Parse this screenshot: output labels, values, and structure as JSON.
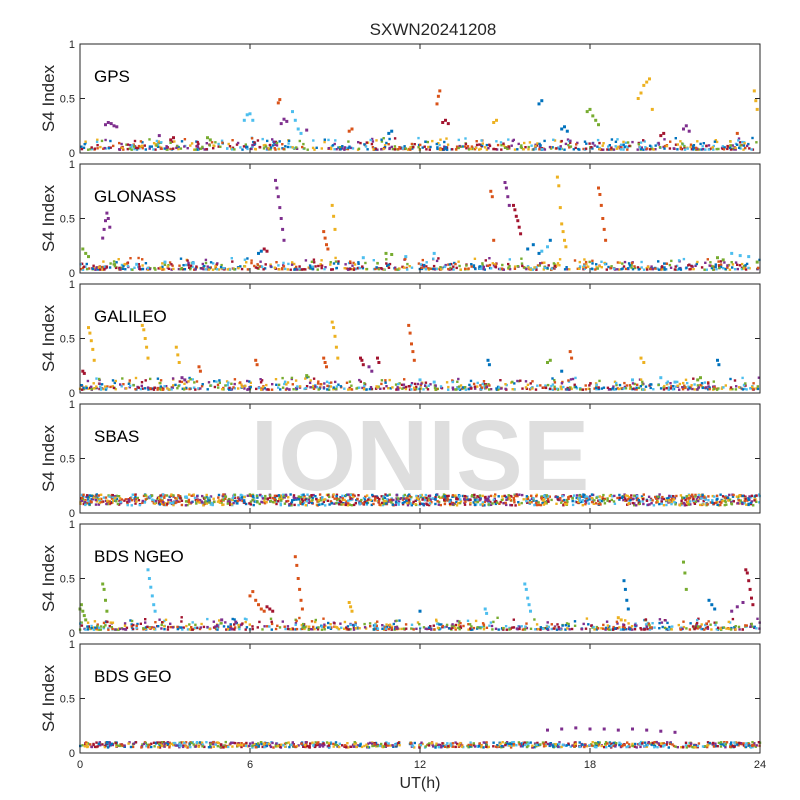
{
  "chart_data": {
    "type": "scatter",
    "title": "SXWN20241208",
    "xlabel": "UT(h)",
    "ylabel": "S4 Index",
    "xlim": [
      0,
      24
    ],
    "ylim": [
      0,
      1
    ],
    "xticks": [
      0,
      6,
      12,
      18,
      24
    ],
    "xtick_labels": [
      "0",
      "6",
      "12",
      "18",
      "24"
    ],
    "yticks": [
      0,
      0.5,
      1
    ],
    "ytick_labels": [
      "0",
      "0.5",
      "1"
    ],
    "watermark": "IONISE",
    "grid": false,
    "palette": [
      "#0072BD",
      "#D95319",
      "#EDB120",
      "#7E2F8E",
      "#77AC30",
      "#4DBEEE",
      "#A2142F"
    ],
    "panels": [
      {
        "label": "GPS",
        "series": [
          {
            "color_index": 3,
            "x": [
              0.9,
              1.0,
              1.1,
              1.2,
              1.3,
              2.8,
              7.1,
              7.2,
              7.3,
              8.0,
              21.3,
              21.4,
              21.5
            ],
            "y": [
              0.26,
              0.28,
              0.27,
              0.25,
              0.24,
              0.16,
              0.27,
              0.31,
              0.29,
              0.21,
              0.22,
              0.25,
              0.2
            ]
          },
          {
            "color_index": 5,
            "x": [
              5.8,
              5.9,
              6.0,
              6.1,
              7.5,
              7.6,
              7.7,
              7.8
            ],
            "y": [
              0.3,
              0.35,
              0.36,
              0.3,
              0.38,
              0.3,
              0.22,
              0.18
            ]
          },
          {
            "color_index": 1,
            "x": [
              7.0,
              7.05,
              12.6,
              12.65,
              12.7,
              9.5,
              9.6,
              23.2
            ],
            "y": [
              0.46,
              0.49,
              0.45,
              0.52,
              0.57,
              0.2,
              0.22,
              0.18
            ]
          },
          {
            "color_index": 2,
            "x": [
              19.7,
              19.8,
              19.9,
              20.0,
              20.1,
              20.2,
              23.8,
              23.85,
              23.9,
              14.6,
              14.7
            ],
            "y": [
              0.5,
              0.55,
              0.62,
              0.65,
              0.68,
              0.4,
              0.57,
              0.48,
              0.4,
              0.28,
              0.3
            ]
          },
          {
            "color_index": 0,
            "x": [
              16.2,
              16.3,
              17.0,
              17.1,
              17.2,
              10.9,
              11.0
            ],
            "y": [
              0.45,
              0.48,
              0.22,
              0.24,
              0.2,
              0.18,
              0.2
            ]
          },
          {
            "color_index": 4,
            "x": [
              17.9,
              18.0,
              18.1,
              18.2,
              18.3,
              4.5,
              4.6
            ],
            "y": [
              0.38,
              0.4,
              0.34,
              0.3,
              0.26,
              0.14,
              0.12
            ]
          },
          {
            "color_index": 6,
            "x": [
              12.8,
              12.9,
              13.0,
              20.5,
              20.6,
              3.2,
              3.3
            ],
            "y": [
              0.28,
              0.3,
              0.27,
              0.16,
              0.18,
              0.12,
              0.14
            ]
          }
        ]
      },
      {
        "label": "GLONASS",
        "series": [
          {
            "color_index": 3,
            "x": [
              0.8,
              0.85,
              0.9,
              0.95,
              1.0,
              1.05,
              6.9,
              6.95,
              7.0,
              7.05,
              7.1,
              7.15,
              7.2,
              15.0,
              15.05,
              15.1,
              15.15
            ],
            "y": [
              0.32,
              0.4,
              0.48,
              0.55,
              0.5,
              0.42,
              0.85,
              0.78,
              0.7,
              0.6,
              0.5,
              0.4,
              0.3,
              0.83,
              0.78,
              0.7,
              0.62
            ]
          },
          {
            "color_index": 6,
            "x": [
              15.3,
              15.35,
              15.4,
              15.45,
              15.5,
              15.55,
              6.5,
              6.6
            ],
            "y": [
              0.62,
              0.58,
              0.52,
              0.48,
              0.42,
              0.36,
              0.22,
              0.2
            ]
          },
          {
            "color_index": 1,
            "x": [
              14.5,
              14.55,
              14.6,
              18.3,
              18.35,
              18.4,
              18.45,
              18.5,
              18.55,
              8.6,
              8.65,
              8.7,
              8.75
            ],
            "y": [
              0.75,
              0.7,
              0.3,
              0.78,
              0.72,
              0.62,
              0.5,
              0.4,
              0.3,
              0.38,
              0.32,
              0.26,
              0.22
            ]
          },
          {
            "color_index": 2,
            "x": [
              16.85,
              16.9,
              16.95,
              17.0,
              17.05,
              17.1,
              17.15,
              8.9,
              8.95,
              9.0
            ],
            "y": [
              0.88,
              0.8,
              0.6,
              0.45,
              0.38,
              0.3,
              0.24,
              0.62,
              0.52,
              0.4
            ]
          },
          {
            "color_index": 5,
            "x": [
              2.0,
              3.0,
              4.0,
              10.0,
              11.5,
              12.5,
              16.3,
              16.5,
              23.0,
              23.3,
              23.6
            ],
            "y": [
              0.08,
              0.1,
              0.09,
              0.14,
              0.15,
              0.18,
              0.2,
              0.24,
              0.18,
              0.16,
              0.15
            ]
          },
          {
            "color_index": 4,
            "x": [
              0.1,
              0.2,
              0.3,
              10.8,
              11.0,
              22.5,
              22.7,
              23.9
            ],
            "y": [
              0.22,
              0.18,
              0.15,
              0.18,
              0.17,
              0.14,
              0.12,
              0.1
            ]
          },
          {
            "color_index": 0,
            "x": [
              15.8,
              16.0,
              16.2,
              16.6,
              6.3,
              6.4
            ],
            "y": [
              0.22,
              0.26,
              0.18,
              0.3,
              0.18,
              0.2
            ]
          }
        ]
      },
      {
        "label": "GALILEO",
        "series": [
          {
            "color_index": 2,
            "x": [
              0.3,
              0.35,
              0.4,
              0.45,
              0.5,
              2.2,
              2.25,
              2.3,
              2.35,
              2.4,
              3.4,
              3.45,
              3.5,
              8.9,
              8.95,
              9.0,
              9.05,
              9.1,
              19.8,
              19.9
            ],
            "y": [
              0.6,
              0.55,
              0.48,
              0.4,
              0.3,
              0.62,
              0.58,
              0.5,
              0.42,
              0.32,
              0.42,
              0.35,
              0.28,
              0.65,
              0.6,
              0.52,
              0.42,
              0.32,
              0.32,
              0.28
            ]
          },
          {
            "color_index": 1,
            "x": [
              11.6,
              11.65,
              11.7,
              11.75,
              11.8,
              8.6,
              8.65,
              8.7,
              6.2,
              6.25,
              17.3,
              17.35,
              4.2,
              4.25
            ],
            "y": [
              0.62,
              0.55,
              0.45,
              0.38,
              0.3,
              0.32,
              0.28,
              0.24,
              0.3,
              0.26,
              0.38,
              0.32,
              0.24,
              0.2
            ]
          },
          {
            "color_index": 6,
            "x": [
              9.9,
              9.95,
              10.0,
              10.5,
              10.55,
              0.1,
              0.15
            ],
            "y": [
              0.32,
              0.3,
              0.26,
              0.32,
              0.28,
              0.2,
              0.18
            ]
          },
          {
            "color_index": 0,
            "x": [
              14.4,
              14.45,
              22.5,
              22.55,
              17.0
            ],
            "y": [
              0.3,
              0.26,
              0.3,
              0.26,
              0.2
            ]
          },
          {
            "color_index": 4,
            "x": [
              16.5,
              16.6,
              21.8,
              21.9,
              8.0
            ],
            "y": [
              0.28,
              0.3,
              0.12,
              0.14,
              0.16
            ]
          },
          {
            "color_index": 5,
            "x": [
              12.0,
              12.5,
              19.5,
              20.5,
              21.0
            ],
            "y": [
              0.12,
              0.1,
              0.12,
              0.14,
              0.1
            ]
          },
          {
            "color_index": 3,
            "x": [
              3.6,
              3.7,
              10.2,
              10.3
            ],
            "y": [
              0.14,
              0.12,
              0.24,
              0.2
            ]
          }
        ]
      },
      {
        "label": "SBAS",
        "series": []
      },
      {
        "label": "BDS NGEO",
        "series": [
          {
            "color_index": 1,
            "x": [
              7.6,
              7.65,
              7.7,
              7.75,
              7.8,
              7.85,
              6.0,
              6.1,
              6.2,
              6.3,
              6.4,
              6.5
            ],
            "y": [
              0.7,
              0.62,
              0.5,
              0.4,
              0.3,
              0.22,
              0.34,
              0.38,
              0.3,
              0.26,
              0.22,
              0.2
            ]
          },
          {
            "color_index": 6,
            "x": [
              6.6,
              6.7,
              6.8,
              23.5,
              23.55,
              23.6,
              23.65,
              23.7,
              23.75
            ],
            "y": [
              0.24,
              0.22,
              0.2,
              0.58,
              0.55,
              0.48,
              0.4,
              0.32,
              0.26
            ]
          },
          {
            "color_index": 4,
            "x": [
              0.0,
              0.05,
              0.1,
              0.15,
              0.2,
              0.8,
              0.85,
              0.9,
              0.95,
              21.3,
              21.35,
              21.4
            ],
            "y": [
              0.22,
              0.26,
              0.2,
              0.16,
              0.12,
              0.45,
              0.4,
              0.3,
              0.2,
              0.65,
              0.55,
              0.4
            ]
          },
          {
            "color_index": 5,
            "x": [
              2.4,
              2.45,
              2.5,
              2.55,
              2.6,
              2.65,
              15.7,
              15.75,
              15.8,
              15.85,
              15.9,
              14.3,
              14.35
            ],
            "y": [
              0.58,
              0.5,
              0.42,
              0.34,
              0.26,
              0.2,
              0.45,
              0.4,
              0.32,
              0.26,
              0.2,
              0.22,
              0.18
            ]
          },
          {
            "color_index": 0,
            "x": [
              19.2,
              19.25,
              19.3,
              19.35,
              22.2,
              22.3,
              22.4,
              12.0
            ],
            "y": [
              0.48,
              0.4,
              0.3,
              0.22,
              0.3,
              0.26,
              0.22,
              0.2
            ]
          },
          {
            "color_index": 2,
            "x": [
              9.5,
              9.55,
              9.6,
              19.0,
              19.1
            ],
            "y": [
              0.28,
              0.24,
              0.2,
              0.14,
              0.12
            ]
          },
          {
            "color_index": 3,
            "x": [
              5.0,
              5.5,
              23.0,
              23.2,
              23.4
            ],
            "y": [
              0.12,
              0.1,
              0.2,
              0.24,
              0.28
            ]
          }
        ]
      },
      {
        "label": "BDS GEO",
        "series": [
          {
            "color_index": 3,
            "x": [
              16.5,
              17.0,
              17.5,
              18.0,
              18.5,
              19.0,
              19.5,
              20.0,
              20.5,
              21.0
            ],
            "y": [
              0.21,
              0.22,
              0.23,
              0.22,
              0.22,
              0.21,
              0.22,
              0.21,
              0.2,
              0.19
            ]
          }
        ]
      }
    ]
  }
}
